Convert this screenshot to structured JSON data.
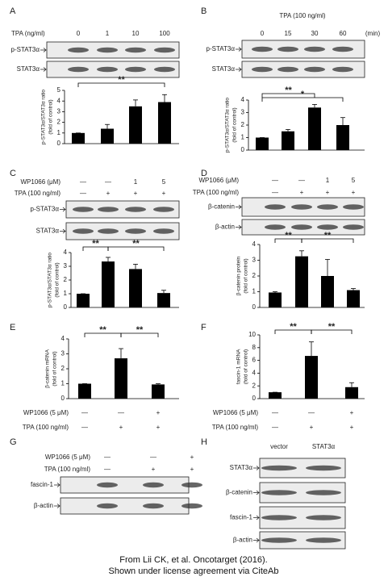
{
  "panels": [
    {
      "label": "A",
      "rows": [
        {
          "label": "TPA (ng/ml)",
          "cells": [
            "0",
            "1",
            "10",
            "100"
          ]
        }
      ],
      "blots": [
        "p-STAT3α",
        "STAT3α"
      ],
      "chart": {
        "type": "bar",
        "y_label": [
          "p-STAT3α/STAT3α ratio",
          "(fold of control)"
        ],
        "values": [
          1,
          1.4,
          3.5,
          3.9
        ],
        "errors": [
          0,
          0.4,
          0.6,
          0.7
        ],
        "ylim": [
          0,
          5
        ],
        "yticks": [
          0,
          1,
          2,
          3,
          4,
          5
        ],
        "significance": [
          {
            "label": "**",
            "from": 0,
            "to": 3
          }
        ]
      }
    },
    {
      "label": "B",
      "rows": [
        {
          "label": "TPA (100 ng/ml)"
        },
        {
          "cells": [
            "0",
            "15",
            "30",
            "60"
          ],
          "unit": "(min)"
        }
      ],
      "blots": [
        "p-STAT3α",
        "STAT3α"
      ],
      "chart": {
        "type": "bar",
        "y_label": [
          "p-STAT3α/STAT3α ratio",
          "(fold of control)"
        ],
        "values": [
          1,
          1.5,
          3.4,
          2.0
        ],
        "errors": [
          0,
          0.15,
          0.25,
          0.6
        ],
        "ylim": [
          0,
          4
        ],
        "yticks": [
          0,
          1,
          2,
          3,
          4
        ],
        "significance": [
          {
            "label": "**",
            "from": 0,
            "to": 2
          },
          {
            "label": "*",
            "from": 0,
            "to": 3
          }
        ]
      }
    },
    {
      "label": "C",
      "rows": [
        {
          "label": "WP1066 (μM)",
          "cells": [
            "—",
            "—",
            "1",
            "5"
          ]
        },
        {
          "label": "TPA (100 ng/ml)",
          "cells": [
            "—",
            "+",
            "+",
            "+"
          ]
        }
      ],
      "blots": [
        "p-STAT3α",
        "STAT3α"
      ],
      "chart": {
        "type": "bar",
        "y_label": [
          "p-STAT3α/STAT3α ratio",
          "(fold of control)"
        ],
        "values": [
          1,
          3.35,
          2.8,
          1.05
        ],
        "errors": [
          0,
          0.3,
          0.35,
          0.2
        ],
        "ylim": [
          0,
          4
        ],
        "yticks": [
          0,
          1,
          2,
          3,
          4
        ],
        "significance": [
          {
            "label": "**",
            "from": 0,
            "to": 1
          },
          {
            "label": "**",
            "from": 1,
            "to": 3
          }
        ]
      }
    },
    {
      "label": "D",
      "rows": [
        {
          "label": "WP1066 (μM)",
          "cells": [
            "—",
            "—",
            "1",
            "5"
          ]
        },
        {
          "label": "TPA (100 ng/ml)",
          "cells": [
            "—",
            "+",
            "+",
            "+"
          ]
        }
      ],
      "blots": [
        "β-catenin",
        "β-actin"
      ],
      "chart": {
        "type": "bar",
        "y_label": [
          "β-catenin protein",
          "(fold of control)"
        ],
        "values": [
          0.95,
          3.25,
          2.0,
          1.1
        ],
        "errors": [
          0.05,
          0.35,
          1.05,
          0.1
        ],
        "ylim": [
          0,
          4
        ],
        "yticks": [
          0,
          1,
          2,
          3,
          4
        ],
        "significance": [
          {
            "label": "**",
            "from": 0,
            "to": 1
          },
          {
            "label": "**",
            "from": 1,
            "to": 3
          }
        ]
      }
    },
    {
      "label": "E",
      "rows": [
        {
          "label": "WP1066 (5 μM)",
          "cells": [
            "—",
            "—",
            "+"
          ]
        },
        {
          "label": "TPA (100 ng/ml)",
          "cells": [
            "—",
            "+",
            "+"
          ]
        }
      ],
      "chart": {
        "type": "bar",
        "y_label": [
          "β-catenin mRNA",
          "(fold of control)"
        ],
        "values": [
          1,
          2.7,
          0.95
        ],
        "errors": [
          0,
          0.65,
          0.05
        ],
        "ylim": [
          0,
          4
        ],
        "yticks": [
          0,
          1,
          2,
          3,
          4
        ],
        "significance": [
          {
            "label": "**",
            "from": 0,
            "to": 1
          },
          {
            "label": "**",
            "from": 1,
            "to": 2
          }
        ]
      }
    },
    {
      "label": "F",
      "rows": [
        {
          "label": "WP1066 (5 μM)",
          "cells": [
            "—",
            "—",
            "+"
          ]
        },
        {
          "label": "TPA (100 ng/ml)",
          "cells": [
            "—",
            "+",
            "+"
          ]
        }
      ],
      "chart": {
        "type": "bar",
        "y_label": [
          "fascin-1 mRNA",
          "(fold of control)"
        ],
        "values": [
          1,
          6.7,
          1.8
        ],
        "errors": [
          0,
          2.2,
          0.7
        ],
        "ylim": [
          0,
          10
        ],
        "yticks": [
          0,
          2,
          4,
          6,
          8,
          10
        ],
        "significance": [
          {
            "label": "**",
            "from": 0,
            "to": 1
          },
          {
            "label": "**",
            "from": 1,
            "to": 2
          }
        ]
      }
    },
    {
      "label": "G",
      "rows": [
        {
          "label": "WP1066 (5 μM)",
          "cells": [
            "—",
            "—",
            "+"
          ]
        },
        {
          "label": "TPA (100 ng/ml)",
          "cells": [
            "—",
            "+",
            "+"
          ]
        }
      ],
      "blots": [
        "fascin-1",
        "β-actin"
      ]
    },
    {
      "label": "H",
      "rows": [
        {
          "cells": [
            "vector",
            "STAT3α"
          ]
        }
      ],
      "blots": [
        "STAT3α",
        "β-catenin",
        "fascin-1",
        "β-actin"
      ]
    }
  ],
  "footer": [
    "From Lii CK, et al. Oncotarget (2016).",
    "Shown under license agreement via CiteAb"
  ]
}
